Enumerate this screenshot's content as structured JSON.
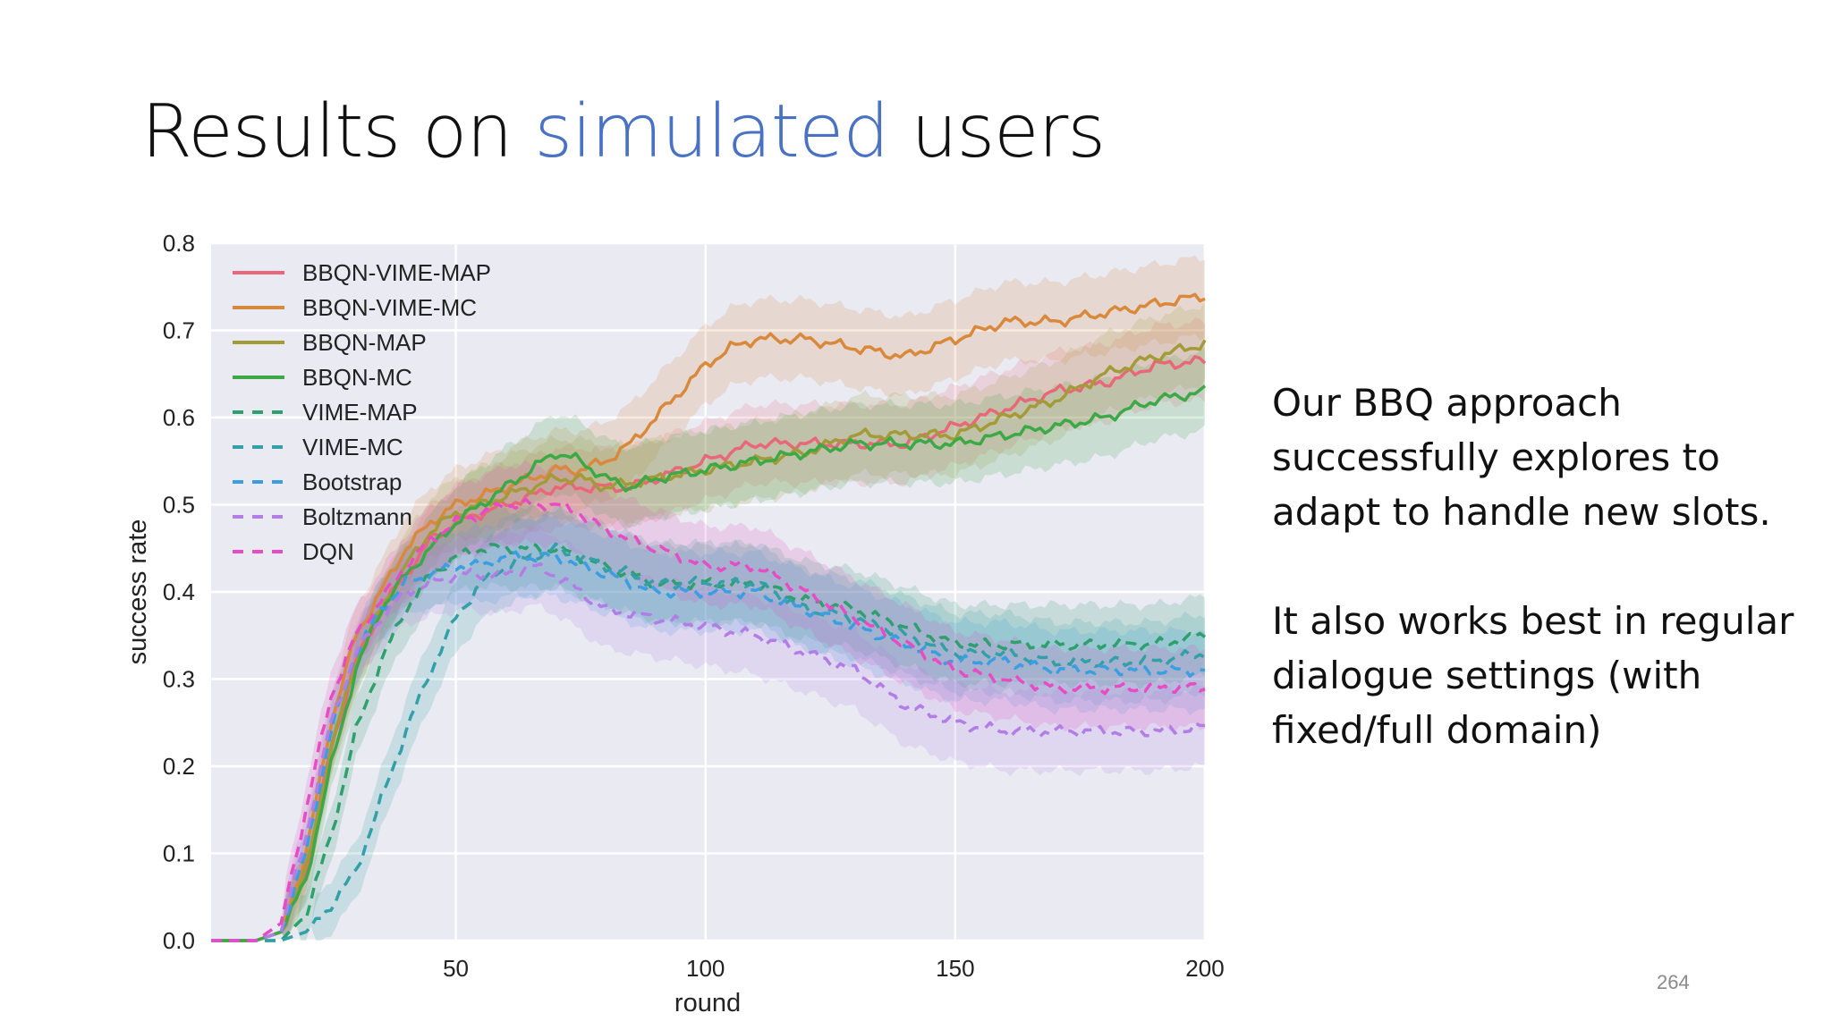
{
  "slide": {
    "title_before": "Results on ",
    "title_accent": "simulated",
    "title_after": " users",
    "paragraph_1": "Our BBQ approach successfully explores to adapt to handle new slots.",
    "paragraph_2": "It also works best in regular dialogue settings (with fixed/full domain)",
    "page_number": "264"
  },
  "chart_data": {
    "type": "line",
    "xlabel": "round",
    "ylabel": "success rate",
    "xlim": [
      1,
      200
    ],
    "ylim": [
      0,
      0.8
    ],
    "xticks": [
      50,
      100,
      150,
      200
    ],
    "yticks": [
      0.0,
      0.1,
      0.2,
      0.3,
      0.4,
      0.5,
      0.6,
      0.7,
      0.8
    ],
    "grid": true,
    "shaded_confidence_bands": true,
    "legend_position": "top-left",
    "background_color": "#eaeaf2",
    "series": [
      {
        "name": "BBQN-VIME-MAP",
        "color": "#e8687a",
        "style": "solid",
        "points": [
          [
            1,
            0
          ],
          [
            10,
            0
          ],
          [
            15,
            0.01
          ],
          [
            20,
            0.08
          ],
          [
            25,
            0.22
          ],
          [
            30,
            0.32
          ],
          [
            35,
            0.38
          ],
          [
            40,
            0.42
          ],
          [
            45,
            0.46
          ],
          [
            50,
            0.48
          ],
          [
            55,
            0.49
          ],
          [
            60,
            0.5
          ],
          [
            65,
            0.51
          ],
          [
            70,
            0.52
          ],
          [
            75,
            0.52
          ],
          [
            80,
            0.52
          ],
          [
            85,
            0.52
          ],
          [
            90,
            0.53
          ],
          [
            100,
            0.55
          ],
          [
            110,
            0.57
          ],
          [
            120,
            0.57
          ],
          [
            130,
            0.57
          ],
          [
            140,
            0.57
          ],
          [
            150,
            0.59
          ],
          [
            160,
            0.61
          ],
          [
            170,
            0.63
          ],
          [
            180,
            0.64
          ],
          [
            190,
            0.66
          ],
          [
            200,
            0.665
          ]
        ]
      },
      {
        "name": "BBQN-VIME-MC",
        "color": "#d9893c",
        "style": "solid",
        "points": [
          [
            1,
            0
          ],
          [
            10,
            0
          ],
          [
            15,
            0.01
          ],
          [
            20,
            0.1
          ],
          [
            25,
            0.25
          ],
          [
            30,
            0.35
          ],
          [
            35,
            0.4
          ],
          [
            40,
            0.45
          ],
          [
            45,
            0.48
          ],
          [
            50,
            0.5
          ],
          [
            55,
            0.51
          ],
          [
            60,
            0.52
          ],
          [
            65,
            0.53
          ],
          [
            70,
            0.54
          ],
          [
            75,
            0.54
          ],
          [
            80,
            0.55
          ],
          [
            85,
            0.57
          ],
          [
            90,
            0.6
          ],
          [
            95,
            0.63
          ],
          [
            100,
            0.66
          ],
          [
            105,
            0.68
          ],
          [
            110,
            0.69
          ],
          [
            120,
            0.69
          ],
          [
            130,
            0.68
          ],
          [
            140,
            0.67
          ],
          [
            150,
            0.69
          ],
          [
            160,
            0.71
          ],
          [
            170,
            0.71
          ],
          [
            180,
            0.72
          ],
          [
            190,
            0.73
          ],
          [
            200,
            0.74
          ]
        ]
      },
      {
        "name": "BBQN-MAP",
        "color": "#a39a38",
        "style": "solid",
        "points": [
          [
            1,
            0
          ],
          [
            10,
            0
          ],
          [
            15,
            0.01
          ],
          [
            20,
            0.08
          ],
          [
            25,
            0.22
          ],
          [
            30,
            0.32
          ],
          [
            35,
            0.38
          ],
          [
            40,
            0.43
          ],
          [
            45,
            0.47
          ],
          [
            50,
            0.49
          ],
          [
            55,
            0.5
          ],
          [
            60,
            0.51
          ],
          [
            65,
            0.52
          ],
          [
            70,
            0.53
          ],
          [
            75,
            0.53
          ],
          [
            80,
            0.52
          ],
          [
            90,
            0.53
          ],
          [
            100,
            0.54
          ],
          [
            110,
            0.55
          ],
          [
            120,
            0.56
          ],
          [
            130,
            0.58
          ],
          [
            140,
            0.58
          ],
          [
            150,
            0.58
          ],
          [
            160,
            0.6
          ],
          [
            170,
            0.62
          ],
          [
            180,
            0.65
          ],
          [
            190,
            0.67
          ],
          [
            200,
            0.685
          ]
        ]
      },
      {
        "name": "BBQN-MC",
        "color": "#3da946",
        "style": "solid",
        "points": [
          [
            1,
            0
          ],
          [
            10,
            0
          ],
          [
            15,
            0.01
          ],
          [
            20,
            0.07
          ],
          [
            25,
            0.2
          ],
          [
            30,
            0.31
          ],
          [
            35,
            0.38
          ],
          [
            40,
            0.42
          ],
          [
            45,
            0.45
          ],
          [
            50,
            0.48
          ],
          [
            55,
            0.5
          ],
          [
            60,
            0.52
          ],
          [
            65,
            0.54
          ],
          [
            70,
            0.56
          ],
          [
            75,
            0.55
          ],
          [
            80,
            0.53
          ],
          [
            85,
            0.52
          ],
          [
            90,
            0.53
          ],
          [
            100,
            0.54
          ],
          [
            110,
            0.55
          ],
          [
            120,
            0.56
          ],
          [
            130,
            0.57
          ],
          [
            140,
            0.57
          ],
          [
            150,
            0.57
          ],
          [
            160,
            0.58
          ],
          [
            170,
            0.59
          ],
          [
            180,
            0.6
          ],
          [
            190,
            0.62
          ],
          [
            200,
            0.63
          ]
        ]
      },
      {
        "name": "VIME-MAP",
        "color": "#2f9f6e",
        "style": "dashed",
        "points": [
          [
            1,
            0
          ],
          [
            10,
            0
          ],
          [
            15,
            0.0
          ],
          [
            20,
            0.03
          ],
          [
            25,
            0.12
          ],
          [
            30,
            0.24
          ],
          [
            35,
            0.32
          ],
          [
            40,
            0.38
          ],
          [
            45,
            0.42
          ],
          [
            50,
            0.44
          ],
          [
            55,
            0.45
          ],
          [
            60,
            0.45
          ],
          [
            65,
            0.45
          ],
          [
            70,
            0.45
          ],
          [
            75,
            0.44
          ],
          [
            80,
            0.43
          ],
          [
            90,
            0.41
          ],
          [
            100,
            0.41
          ],
          [
            110,
            0.41
          ],
          [
            120,
            0.39
          ],
          [
            130,
            0.38
          ],
          [
            140,
            0.36
          ],
          [
            150,
            0.34
          ],
          [
            160,
            0.34
          ],
          [
            170,
            0.34
          ],
          [
            180,
            0.34
          ],
          [
            190,
            0.34
          ],
          [
            200,
            0.35
          ]
        ]
      },
      {
        "name": "VIME-MC",
        "color": "#33a0a8",
        "style": "dashed",
        "points": [
          [
            1,
            0
          ],
          [
            10,
            0
          ],
          [
            15,
            0.0
          ],
          [
            20,
            0.01
          ],
          [
            25,
            0.04
          ],
          [
            30,
            0.08
          ],
          [
            35,
            0.16
          ],
          [
            40,
            0.24
          ],
          [
            45,
            0.31
          ],
          [
            50,
            0.37
          ],
          [
            55,
            0.41
          ],
          [
            60,
            0.43
          ],
          [
            65,
            0.44
          ],
          [
            70,
            0.45
          ],
          [
            75,
            0.44
          ],
          [
            80,
            0.43
          ],
          [
            90,
            0.41
          ],
          [
            100,
            0.41
          ],
          [
            110,
            0.41
          ],
          [
            120,
            0.38
          ],
          [
            130,
            0.37
          ],
          [
            140,
            0.35
          ],
          [
            150,
            0.33
          ],
          [
            160,
            0.33
          ],
          [
            170,
            0.32
          ],
          [
            180,
            0.32
          ],
          [
            190,
            0.32
          ],
          [
            200,
            0.33
          ]
        ]
      },
      {
        "name": "Bootstrap",
        "color": "#3b9ee0",
        "style": "dashed",
        "points": [
          [
            1,
            0
          ],
          [
            10,
            0
          ],
          [
            15,
            0.01
          ],
          [
            20,
            0.1
          ],
          [
            25,
            0.24
          ],
          [
            30,
            0.33
          ],
          [
            35,
            0.38
          ],
          [
            40,
            0.41
          ],
          [
            45,
            0.42
          ],
          [
            50,
            0.43
          ],
          [
            55,
            0.43
          ],
          [
            60,
            0.44
          ],
          [
            65,
            0.44
          ],
          [
            70,
            0.44
          ],
          [
            75,
            0.43
          ],
          [
            80,
            0.42
          ],
          [
            90,
            0.4
          ],
          [
            100,
            0.4
          ],
          [
            110,
            0.4
          ],
          [
            120,
            0.38
          ],
          [
            130,
            0.36
          ],
          [
            140,
            0.34
          ],
          [
            150,
            0.32
          ],
          [
            160,
            0.32
          ],
          [
            170,
            0.31
          ],
          [
            180,
            0.31
          ],
          [
            190,
            0.31
          ],
          [
            200,
            0.31
          ]
        ]
      },
      {
        "name": "Boltzmann",
        "color": "#b27ee6",
        "style": "dashed",
        "points": [
          [
            1,
            0
          ],
          [
            10,
            0
          ],
          [
            15,
            0.01
          ],
          [
            20,
            0.12
          ],
          [
            25,
            0.25
          ],
          [
            30,
            0.33
          ],
          [
            35,
            0.37
          ],
          [
            40,
            0.4
          ],
          [
            45,
            0.41
          ],
          [
            50,
            0.42
          ],
          [
            55,
            0.42
          ],
          [
            60,
            0.42
          ],
          [
            65,
            0.43
          ],
          [
            70,
            0.42
          ],
          [
            75,
            0.4
          ],
          [
            80,
            0.38
          ],
          [
            90,
            0.37
          ],
          [
            100,
            0.36
          ],
          [
            110,
            0.35
          ],
          [
            120,
            0.33
          ],
          [
            130,
            0.31
          ],
          [
            140,
            0.27
          ],
          [
            150,
            0.25
          ],
          [
            160,
            0.24
          ],
          [
            170,
            0.24
          ],
          [
            180,
            0.24
          ],
          [
            190,
            0.24
          ],
          [
            200,
            0.245
          ]
        ]
      },
      {
        "name": "DQN",
        "color": "#e64cc3",
        "style": "dashed",
        "points": [
          [
            1,
            0
          ],
          [
            10,
            0
          ],
          [
            15,
            0.02
          ],
          [
            20,
            0.15
          ],
          [
            25,
            0.28
          ],
          [
            30,
            0.35
          ],
          [
            35,
            0.39
          ],
          [
            40,
            0.43
          ],
          [
            45,
            0.46
          ],
          [
            50,
            0.48
          ],
          [
            55,
            0.49
          ],
          [
            60,
            0.5
          ],
          [
            65,
            0.5
          ],
          [
            70,
            0.5
          ],
          [
            75,
            0.49
          ],
          [
            80,
            0.47
          ],
          [
            90,
            0.45
          ],
          [
            100,
            0.43
          ],
          [
            110,
            0.43
          ],
          [
            120,
            0.4
          ],
          [
            130,
            0.37
          ],
          [
            140,
            0.34
          ],
          [
            150,
            0.31
          ],
          [
            160,
            0.3
          ],
          [
            170,
            0.29
          ],
          [
            180,
            0.29
          ],
          [
            190,
            0.29
          ],
          [
            200,
            0.29
          ]
        ]
      }
    ]
  }
}
